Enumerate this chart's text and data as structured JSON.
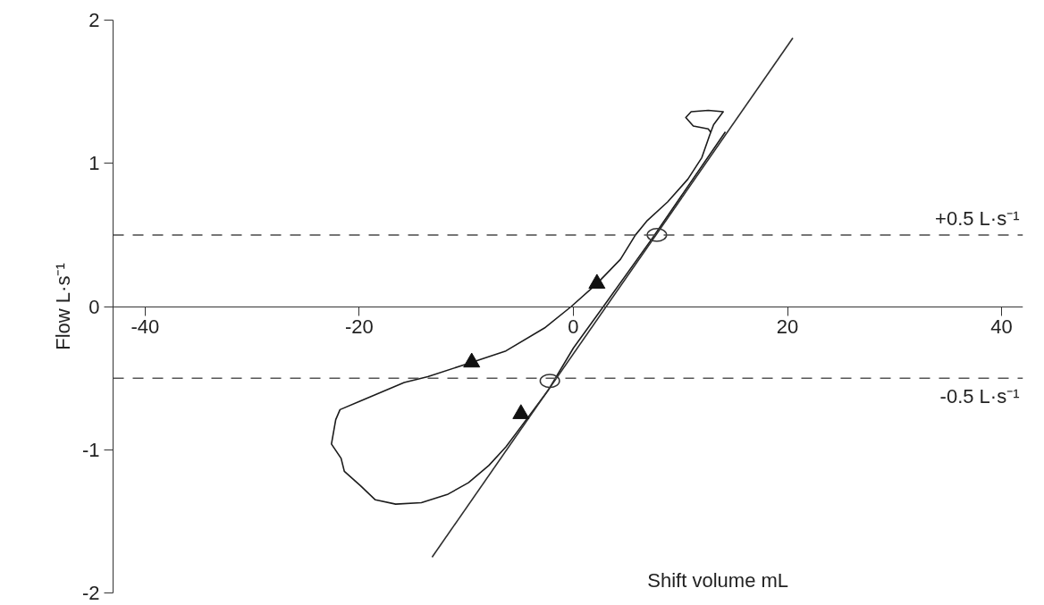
{
  "chart_data": {
    "type": "line",
    "xlabel": "Shift volume mL",
    "ylabel": "Flow L·s⁻¹",
    "xlim": [
      -43,
      42
    ],
    "ylim": [
      -2,
      2
    ],
    "xticks": [
      -40,
      -20,
      0,
      20,
      40
    ],
    "yticks": [
      -2,
      -1,
      0,
      1,
      2
    ],
    "grid": false,
    "series": [
      {
        "color": "#1c1c1c",
        "marker": "none",
        "x": [
          14.2,
          7.4,
          3.0,
          0.0,
          -2.4,
          -4.9,
          -6.3,
          -7.9,
          -9.8,
          -11.7,
          -14.2,
          -16.6,
          -18.5,
          -19.9,
          -21.4,
          -21.7,
          -22.6,
          -22.2,
          -21.8,
          -19.9,
          -15.8,
          -13.6,
          -9.5,
          -6.3,
          -2.7,
          -0.2,
          2.2,
          4.4,
          5.8,
          6.9,
          8.8,
          10.7,
          12.0,
          12.7,
          13.1,
          14.0,
          12.6,
          11.0,
          10.5,
          11.2,
          12.6,
          12.8
        ],
        "values": [
          1.22,
          0.48,
          0.02,
          -0.29,
          -0.59,
          -0.84,
          -0.98,
          -1.11,
          -1.23,
          -1.31,
          -1.37,
          -1.38,
          -1.35,
          -1.25,
          -1.15,
          -1.06,
          -0.96,
          -0.79,
          -0.72,
          -0.66,
          -0.53,
          -0.49,
          -0.39,
          -0.31,
          -0.15,
          0.0,
          0.16,
          0.33,
          0.5,
          0.6,
          0.73,
          0.89,
          1.04,
          1.19,
          1.27,
          1.36,
          1.37,
          1.36,
          1.32,
          1.26,
          1.24,
          1.22
        ]
      },
      {
        "color": "#2e2e2e",
        "marker": "none",
        "x": [
          -13.2,
          20.5
        ],
        "values": [
          -1.75,
          1.875
        ]
      },
      {
        "type": "scatter",
        "color": "#111111",
        "marker": "triangle",
        "x": [
          -9.5,
          2.2,
          -4.9
        ],
        "values": [
          -0.39,
          0.16,
          -0.75
        ]
      },
      {
        "type": "scatter",
        "color": "#333333",
        "marker": "circle",
        "x": [
          7.8,
          -2.2
        ],
        "values": [
          0.5,
          -0.52
        ]
      }
    ],
    "ref_lines": [
      {
        "axis": "y",
        "value": 0.5,
        "label": "+0.5 L·s⁻¹",
        "line_style": "dashed",
        "color": "#4a4a4a"
      },
      {
        "axis": "y",
        "value": -0.5,
        "label": "-0.5 L·s⁻¹",
        "line_style": "dashed",
        "color": "#555555"
      }
    ]
  }
}
